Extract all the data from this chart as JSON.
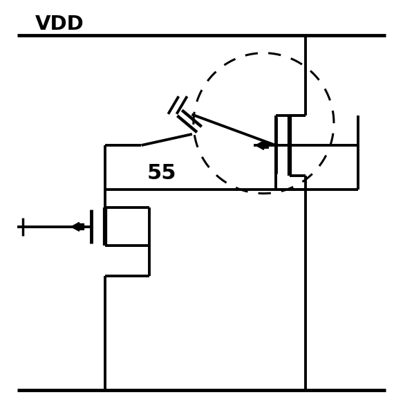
{
  "title": "VDD",
  "label_55": "55",
  "bg_color": "#ffffff",
  "line_color": "#000000",
  "lw_main": 2.8,
  "lw_thick": 4.0,
  "fig_width": 5.83,
  "fig_height": 6.0,
  "dpi": 100
}
